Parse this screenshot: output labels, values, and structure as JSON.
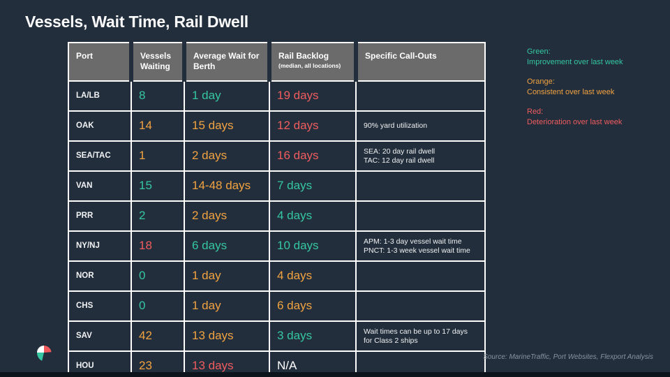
{
  "slide": {
    "title": "Vessels, Wait Time, Rail Dwell",
    "source": "Source: MarineTraffic, Port Websites, Flexport Analysis"
  },
  "colors": {
    "background": "#222e3c",
    "header_gray": "#6b6b6b",
    "green": "#35c7a2",
    "orange": "#f2a340",
    "red": "#f05c5e",
    "white": "#ffffff"
  },
  "legend": [
    {
      "label": "Green:",
      "desc": "Improvement over last week",
      "color": "green"
    },
    {
      "label": "Orange:",
      "desc": "Consistent over last week",
      "color": "orange"
    },
    {
      "label": "Red:",
      "desc": "Deterioration over last week",
      "color": "red"
    }
  ],
  "table": {
    "headers": [
      "Port",
      "Vessels Waiting",
      "Average Wait for Berth",
      "Rail Backlog",
      "Specific Call-Outs"
    ],
    "rail_backlog_note": "(median, all locations)",
    "rows": [
      {
        "port": "LA/LB",
        "vessels": {
          "text": "8",
          "color": "green"
        },
        "wait": {
          "text": "1 day",
          "color": "green"
        },
        "rail": {
          "text": "19 days",
          "color": "red"
        },
        "callout": ""
      },
      {
        "port": "OAK",
        "vessels": {
          "text": "14",
          "color": "orange"
        },
        "wait": {
          "text": "15 days",
          "color": "orange"
        },
        "rail": {
          "text": "12 days",
          "color": "red"
        },
        "callout": "90% yard utilization"
      },
      {
        "port": "SEA/TAC",
        "vessels": {
          "text": "1",
          "color": "orange"
        },
        "wait": {
          "text": "2 days",
          "color": "orange"
        },
        "rail": {
          "text": "16 days",
          "color": "red"
        },
        "callout": "SEA: 20 day rail dwell\nTAC: 12 day rail dwell"
      },
      {
        "port": "VAN",
        "vessels": {
          "text": "15",
          "color": "green"
        },
        "wait": {
          "text": "14-48 days",
          "color": "orange"
        },
        "rail": {
          "text": "7 days",
          "color": "green"
        },
        "callout": ""
      },
      {
        "port": "PRR",
        "vessels": {
          "text": "2",
          "color": "green"
        },
        "wait": {
          "text": "2 days",
          "color": "orange"
        },
        "rail": {
          "text": "4 days",
          "color": "green"
        },
        "callout": ""
      },
      {
        "port": "NY/NJ",
        "vessels": {
          "text": "18",
          "color": "red"
        },
        "wait": {
          "text": "6 days",
          "color": "green"
        },
        "rail": {
          "text": "10 days",
          "color": "green"
        },
        "callout": "APM: 1-3 day vessel wait time\nPNCT: 1-3 week vessel wait time"
      },
      {
        "port": "NOR",
        "vessels": {
          "text": "0",
          "color": "green"
        },
        "wait": {
          "text": "1 day",
          "color": "orange"
        },
        "rail": {
          "text": "4 days",
          "color": "orange"
        },
        "callout": ""
      },
      {
        "port": "CHS",
        "vessels": {
          "text": "0",
          "color": "green"
        },
        "wait": {
          "text": "1 day",
          "color": "orange"
        },
        "rail": {
          "text": "6 days",
          "color": "orange"
        },
        "callout": ""
      },
      {
        "port": "SAV",
        "vessels": {
          "text": "42",
          "color": "orange"
        },
        "wait": {
          "text": "13 days",
          "color": "orange"
        },
        "rail": {
          "text": "3 days",
          "color": "green"
        },
        "callout": "Wait times can be up to 17 days\nfor Class 2 ships"
      },
      {
        "port": "HOU",
        "vessels": {
          "text": "23",
          "color": "orange"
        },
        "wait": {
          "text": "13 days",
          "color": "red"
        },
        "rail": {
          "text": "N/A",
          "color": "white"
        },
        "callout": ""
      }
    ]
  },
  "logo": {
    "name": "flexport-logo-mark"
  }
}
